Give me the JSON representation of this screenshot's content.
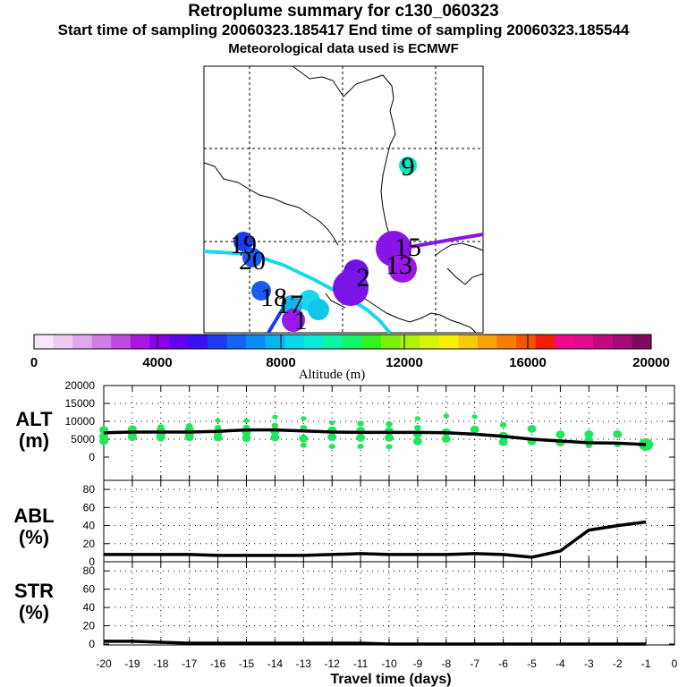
{
  "header": {
    "title": "Retroplume summary for c130_060323",
    "line2": "Start time of sampling 20060323.185417      End time of sampling 20060323.185544",
    "line3": "Meteorological data used is ECMWF"
  },
  "colorbar": {
    "label": "Altitude (m)",
    "ticks": [
      "0",
      "4000",
      "8000",
      "12000",
      "16000",
      "20000"
    ],
    "range": [
      0,
      20000
    ],
    "colors": [
      "#f6e6f8",
      "#eccbf2",
      "#e0a8ee",
      "#d27ce8",
      "#c14ae2",
      "#a817e4",
      "#8c00e8",
      "#6200f0",
      "#3a10f4",
      "#1a3af6",
      "#1464f6",
      "#0d8ef2",
      "#09b4ee",
      "#08d6ec",
      "#08ecd6",
      "#0cf4a4",
      "#14f66a",
      "#32f41c",
      "#7af20c",
      "#aef208",
      "#d6f406",
      "#f6f004",
      "#f6cc04",
      "#f6a204",
      "#f67e04",
      "#f45404",
      "#f41e04",
      "#f4068a",
      "#e20a8e",
      "#c40a82",
      "#a40a74",
      "#800a60"
    ],
    "dividers": [
      4000,
      8000,
      12000,
      16000
    ]
  },
  "map": {
    "plume_labels": [
      {
        "text": "9",
        "color": "#08d6cc"
      },
      {
        "text": "19",
        "color": "#1a46f4"
      },
      {
        "text": "20",
        "color": "#1a46f4"
      },
      {
        "text": "15",
        "color": "#6a10e8"
      },
      {
        "text": "13",
        "color": "#9a18ea"
      },
      {
        "text": "2",
        "color": "#7a14e8"
      },
      {
        "text": "18",
        "color": "#1a64f4"
      },
      {
        "text": "17",
        "color": "#10c4ea"
      },
      {
        "text": "1",
        "color": "#9a18ea"
      }
    ]
  },
  "chart_data": [
    {
      "type": "line",
      "panel": "ALT",
      "ylabel": "ALT (m)",
      "xlabel": "Travel time (days)",
      "xlim": [
        -20,
        0
      ],
      "ylim": [
        0,
        20000
      ],
      "yticks": [
        "0",
        "5000",
        "10000",
        "15000",
        "20000"
      ],
      "x": [
        -20,
        -19,
        -18,
        -17,
        -16,
        -15,
        -14,
        -13,
        -12,
        -11,
        -10,
        -9,
        -8,
        -7,
        -6,
        -5,
        -4,
        -3,
        -2,
        -1
      ],
      "series": [
        {
          "name": "median altitude",
          "values": [
            6800,
            7000,
            7000,
            7000,
            7200,
            7600,
            7600,
            7300,
            7000,
            6900,
            6900,
            6900,
            6800,
            6400,
            5800,
            5000,
            4500,
            4000,
            3900,
            3500
          ]
        }
      ],
      "scatter": {
        "name": "altitude spread",
        "x": [
          -20,
          -20,
          -20,
          -19,
          -19,
          -19,
          -18,
          -18,
          -18,
          -18,
          -17,
          -17,
          -17,
          -17,
          -16,
          -16,
          -16,
          -16,
          -15,
          -15,
          -15,
          -15,
          -14,
          -14,
          -14,
          -14,
          -13,
          -13,
          -13,
          -13,
          -12,
          -12,
          -12,
          -12,
          -11,
          -11,
          -11,
          -11,
          -10,
          -10,
          -10,
          -10,
          -9,
          -9,
          -9,
          -9,
          -8,
          -8,
          -8,
          -7,
          -7,
          -6,
          -6,
          -6,
          -5,
          -5,
          -4,
          -4,
          -3,
          -3,
          -3,
          -2,
          -2,
          -1
        ],
        "y": [
          7600,
          5800,
          4500,
          7800,
          6700,
          5600,
          8400,
          7400,
          6300,
          5500,
          8700,
          7700,
          6500,
          5600,
          10200,
          8200,
          6900,
          5500,
          10200,
          8300,
          6900,
          5300,
          11200,
          8800,
          7200,
          5500,
          10800,
          8200,
          5200,
          3300,
          9600,
          7500,
          5600,
          3000,
          9400,
          7400,
          5400,
          3000,
          9200,
          7300,
          5400,
          2900,
          10800,
          8200,
          6400,
          4400,
          11500,
          7000,
          5100,
          11300,
          7700,
          9000,
          6000,
          4200,
          7900,
          4400,
          6300,
          4100,
          6400,
          4700,
          3200,
          6400,
          3500,
          3200
        ]
      }
    },
    {
      "type": "line",
      "panel": "ABL",
      "ylabel": "ABL (%)",
      "xlim": [
        -20,
        0
      ],
      "ylim": [
        0,
        90
      ],
      "yticks": [
        "0",
        "20",
        "40",
        "60",
        "80"
      ],
      "x": [
        -20,
        -19,
        -18,
        -17,
        -16,
        -15,
        -14,
        -13,
        -12,
        -11,
        -10,
        -9,
        -8,
        -7,
        -6,
        -5,
        -4,
        -3,
        -2,
        -1
      ],
      "series": [
        {
          "name": "ABL fraction",
          "values": [
            8,
            8,
            8,
            8,
            7,
            7,
            7,
            7,
            8,
            9,
            8,
            8,
            8,
            9,
            8,
            5,
            12,
            35,
            40,
            44
          ]
        }
      ]
    },
    {
      "type": "line",
      "panel": "STR",
      "ylabel": "STR (%)",
      "xlim": [
        -20,
        0
      ],
      "ylim": [
        0,
        90
      ],
      "yticks": [
        "0",
        "20",
        "40",
        "60",
        "80"
      ],
      "xticks": [
        "-20",
        "-19",
        "-18",
        "-17",
        "-16",
        "-15",
        "-14",
        "-13",
        "-12",
        "-11",
        "-10",
        "-9",
        "-8",
        "-7",
        "-6",
        "-5",
        "-4",
        "-3",
        "-2",
        "-1",
        "0"
      ],
      "x": [
        -20,
        -19,
        -18,
        -17,
        -16,
        -15,
        -14,
        -13,
        -12,
        -11,
        -10,
        -9,
        -8,
        -7,
        -6,
        -5,
        -4,
        -3,
        -2,
        -1
      ],
      "series": [
        {
          "name": "stratospheric fraction",
          "values": [
            3,
            3,
            2,
            1,
            1,
            1,
            1,
            1,
            1,
            1,
            0,
            0,
            0,
            0,
            0,
            0,
            0,
            0,
            0,
            0
          ]
        }
      ]
    }
  ],
  "panel_labels": {
    "alt_top": "ALT",
    "alt_bot": "(m)",
    "abl_top": "ABL",
    "abl_bot": "(%)",
    "str_top": "STR",
    "str_bot": "(%)"
  }
}
